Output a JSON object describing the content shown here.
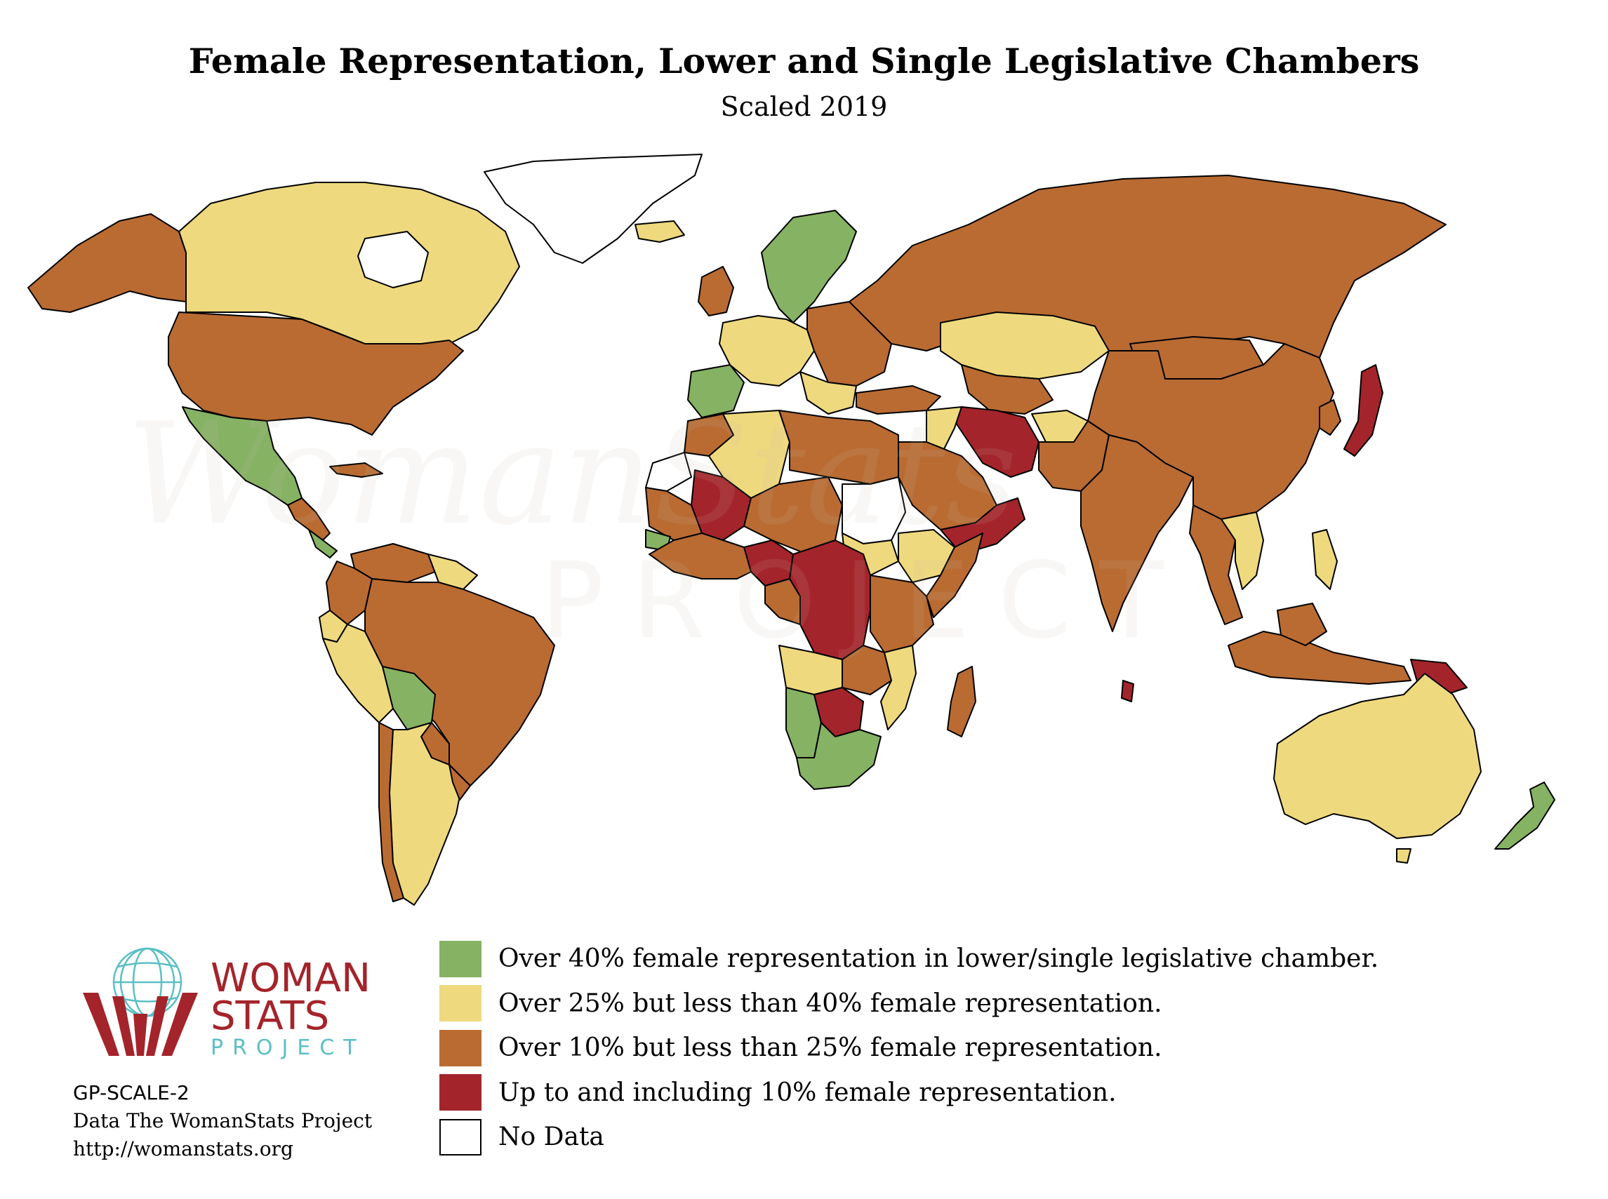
{
  "title": "Female Representation, Lower and Single Legislative Chambers",
  "subtitle": "Scaled 2019",
  "colors": {
    "green": "#86b263",
    "yellow": "#eed97e",
    "orange": "#b96b32",
    "red": "#a4242b",
    "nodata": "#ffffff",
    "border": "#000000"
  },
  "legend": [
    {
      "label": "Over 40% female representation in lower/single legislative chamber.",
      "color": "#86b263"
    },
    {
      "label": "Over 25% but less than 40% female representation.",
      "color": "#eed97e"
    },
    {
      "label": "Over 10% but less than 25% female representation.",
      "color": "#b96b32"
    },
    {
      "label": "Up to and including 10% female representation.",
      "color": "#a4242b"
    },
    {
      "label": "No Data",
      "color": "#ffffff"
    }
  ],
  "logo": {
    "line1": "WOMAN",
    "line2": "STATS",
    "line3": "PROJECT",
    "icon": "globe-hands-icon"
  },
  "watermark": {
    "text": "WomanStats",
    "sub": "PROJECT"
  },
  "credits": {
    "code": "GP-SCALE-2",
    "source": "Data The WomanStats Project",
    "url": "http://womanstats.org"
  }
}
